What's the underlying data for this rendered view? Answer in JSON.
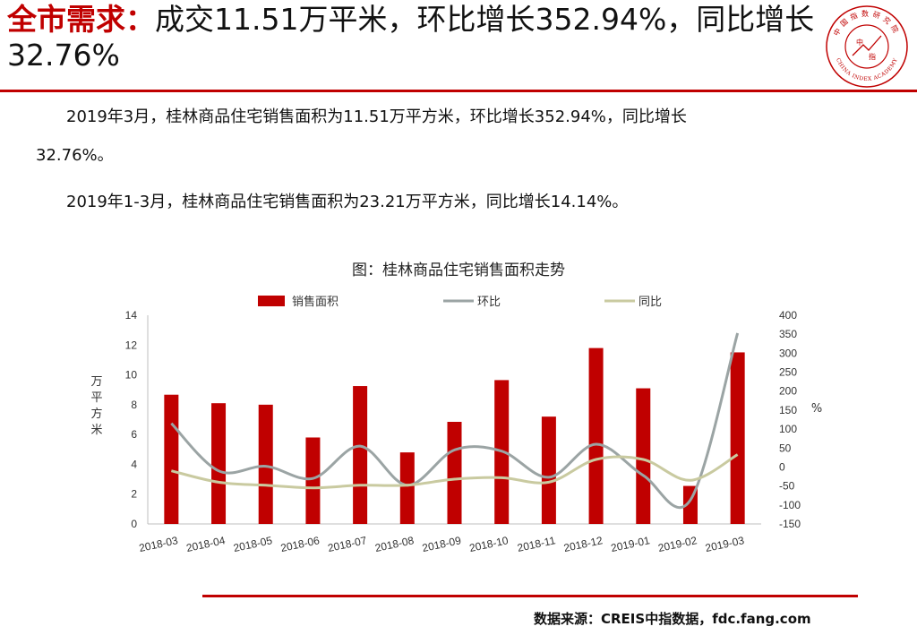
{
  "headline": {
    "accent": "全市需求：",
    "text": "成交11.51万平米，环比增长352.94%，同比增长32.76%"
  },
  "logo": {
    "top_text": "中国指数研究院",
    "center_text": "中",
    "center_text2": "指",
    "bottom_text": "CHINA INDEX ACADEMY",
    "color": "#c00000"
  },
  "paragraphs": {
    "p1": "2019年3月，桂林商品住宅销售面积为11.51万平方米，环比增长352.94%，同比增长",
    "p1_cont": "32.76%。",
    "p2": "2019年1-3月，桂林商品住宅销售面积为23.21万平方米，同比增长14.14%。"
  },
  "chart_data": {
    "type": "bar",
    "title": "图：桂林商品住宅销售面积走势",
    "categories": [
      "2018-03",
      "2018-04",
      "2018-05",
      "2018-06",
      "2018-07",
      "2018-08",
      "2018-09",
      "2018-10",
      "2018-11",
      "2018-12",
      "2019-01",
      "2019-02",
      "2019-03"
    ],
    "series": [
      {
        "name": "销售面积",
        "type": "bar",
        "axis": "left",
        "color": "#c00000",
        "values": [
          8.67,
          8.1,
          8.0,
          5.8,
          9.25,
          4.8,
          6.85,
          9.65,
          7.2,
          11.8,
          9.1,
          2.55,
          11.51
        ]
      },
      {
        "name": "环比",
        "type": "line",
        "axis": "right",
        "color": "#9ba4a4",
        "values": [
          115,
          -10,
          2,
          -30,
          55,
          -48,
          45,
          42,
          -27,
          60,
          -22,
          -87,
          352.94
        ]
      },
      {
        "name": "同比",
        "type": "line",
        "axis": "right",
        "color": "#c9caa0",
        "values": [
          -10,
          -40,
          -48,
          -55,
          -48,
          -48,
          -32,
          -28,
          -40,
          20,
          20,
          -35,
          32.76
        ]
      }
    ],
    "ylabel": "万平方米",
    "y2label": "%",
    "ylim": [
      0,
      14
    ],
    "yticks": [
      0,
      2,
      4,
      6,
      8,
      10,
      12,
      14
    ],
    "y2lim": [
      -150,
      400
    ],
    "y2ticks": [
      -150,
      -100,
      -50,
      0,
      50,
      100,
      150,
      200,
      250,
      300,
      350,
      400
    ],
    "legend_position": "top",
    "grid": false
  },
  "source": "数据来源：CREIS中指数据，fdc.fang.com"
}
